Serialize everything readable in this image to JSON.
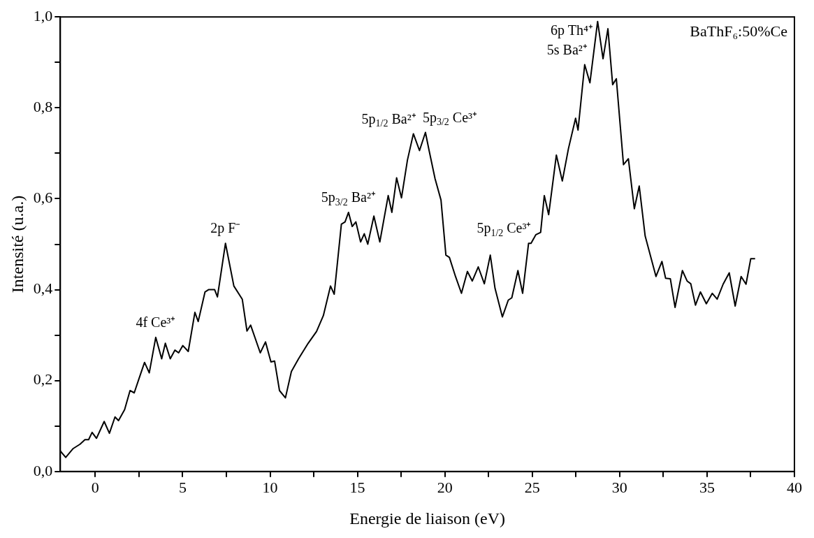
{
  "chart_data": {
    "type": "line",
    "xlabel": "Energie de liaison (eV)",
    "ylabel": "Intensité (u.a.)",
    "xlim": [
      -2,
      40
    ],
    "ylim": [
      0,
      1
    ],
    "xticks": [
      0,
      {
        "value": 2.5,
        "label": null
      },
      5,
      {
        "value": 7.5,
        "label": null
      },
      10,
      {
        "value": 12.5,
        "label": null
      },
      15,
      {
        "value": 17.5,
        "label": null
      },
      20,
      {
        "value": 22.5,
        "label": null
      },
      25,
      {
        "value": 27.5,
        "label": null
      },
      30,
      {
        "value": 32.5,
        "label": null
      },
      35,
      {
        "value": 37.5,
        "label": null
      },
      40
    ],
    "yticks": [
      {
        "value": 0,
        "label": "0,0"
      },
      {
        "value": 0.1,
        "label": null
      },
      {
        "value": 0.2,
        "label": "0,2"
      },
      {
        "value": 0.3,
        "label": null
      },
      {
        "value": 0.4,
        "label": "0,4"
      },
      {
        "value": 0.5,
        "label": null
      },
      {
        "value": 0.6,
        "label": "0,6"
      },
      {
        "value": 0.7,
        "label": null
      },
      {
        "value": 0.8,
        "label": "0,8"
      },
      {
        "value": 0.9,
        "label": null
      },
      {
        "value": 1,
        "label": "1,0"
      }
    ],
    "grid": false,
    "legend": false,
    "marker": "none",
    "line_style": "solid",
    "annotations": [
      {
        "text": "4f Ce³⁺",
        "x": 3.46,
        "y": 0.295
      },
      {
        "text": "2p F⁻",
        "x": 7.45,
        "y": 0.502
      },
      {
        "text": "5p$_{3/2}$ Ba²⁺",
        "x": 14.49,
        "y": 0.57
      },
      {
        "text": "5p$_{1/2}$ Ba²⁺",
        "x": 18.2,
        "y": 0.743
      },
      {
        "text": "5p$_{3/2}$ Ce³⁺",
        "x": 18.89,
        "y": 0.746
      },
      {
        "text": "5p$_{1/2}$ Ce³⁺",
        "x": 24.79,
        "y": 0.502
      },
      {
        "text": "6p Th⁴⁺",
        "x": 28.74,
        "y": 0.99
      },
      {
        "text": "5s Ba²⁺",
        "x": 28.0,
        "y": 0.895
      },
      "BaThF₆:50%Ce"
    ],
    "series": [
      {
        "color": "#000000",
        "x": [
          -2,
          -1.69,
          -1.28,
          -0.87,
          -0.59,
          -0.38,
          -0.18,
          0.07,
          0.51,
          0.81,
          1.13,
          1.33,
          1.68,
          1.99,
          2.23,
          2.5,
          2.82,
          3.09,
          3.46,
          3.8,
          4.01,
          4.29,
          4.56,
          4.77,
          5.01,
          5.32,
          5.7,
          5.89,
          6.28,
          6.48,
          6.83,
          6.99,
          7.45,
          7.93,
          8.41,
          8.68,
          8.89,
          9.44,
          9.74,
          10.05,
          10.26,
          10.54,
          10.88,
          11.22,
          11.63,
          12.18,
          12.66,
          13.05,
          13.46,
          13.67,
          14.08,
          14.29,
          14.49,
          14.7,
          14.91,
          15.18,
          15.39,
          15.59,
          15.94,
          16.28,
          16.76,
          16.97,
          17.24,
          17.52,
          17.86,
          18.2,
          18.55,
          18.89,
          19.1,
          19.44,
          19.78,
          20.06,
          20.26,
          20.61,
          20.95,
          21.29,
          21.57,
          21.91,
          22.26,
          22.6,
          22.87,
          23.29,
          23.63,
          23.83,
          24.18,
          24.45,
          24.79,
          24.93,
          25.21,
          25.48,
          25.69,
          25.94,
          26.38,
          26.72,
          27.07,
          27.48,
          27.62,
          28.0,
          28.3,
          28.74,
          29.05,
          29.33,
          29.6,
          29.81,
          30.22,
          30.5,
          30.84,
          31.12,
          31.46,
          32.08,
          32.42,
          32.63,
          32.9,
          33.17,
          33.59,
          33.86,
          34.07,
          34.34,
          34.62,
          34.96,
          35.3,
          35.58,
          35.92,
          36.27,
          36.61,
          36.95,
          37.23,
          37.5,
          37.75
        ],
        "values": [
          0.045,
          0.031,
          0.05,
          0.06,
          0.07,
          0.07,
          0.086,
          0.073,
          0.11,
          0.084,
          0.12,
          0.112,
          0.136,
          0.178,
          0.173,
          0.204,
          0.24,
          0.217,
          0.295,
          0.248,
          0.282,
          0.248,
          0.267,
          0.261,
          0.277,
          0.264,
          0.35,
          0.33,
          0.395,
          0.4,
          0.4,
          0.384,
          0.502,
          0.408,
          0.379,
          0.309,
          0.322,
          0.261,
          0.285,
          0.241,
          0.243,
          0.178,
          0.162,
          0.22,
          0.248,
          0.282,
          0.308,
          0.343,
          0.408,
          0.39,
          0.544,
          0.549,
          0.57,
          0.539,
          0.549,
          0.505,
          0.523,
          0.5,
          0.562,
          0.505,
          0.607,
          0.57,
          0.646,
          0.602,
          0.685,
          0.743,
          0.706,
          0.746,
          0.706,
          0.644,
          0.597,
          0.476,
          0.471,
          0.429,
          0.392,
          0.44,
          0.419,
          0.45,
          0.413,
          0.476,
          0.403,
          0.34,
          0.377,
          0.382,
          0.442,
          0.392,
          0.502,
          0.502,
          0.521,
          0.526,
          0.607,
          0.565,
          0.696,
          0.639,
          0.71,
          0.777,
          0.751,
          0.895,
          0.855,
          0.99,
          0.908,
          0.974,
          0.851,
          0.864,
          0.675,
          0.688,
          0.578,
          0.628,
          0.518,
          0.429,
          0.462,
          0.425,
          0.424,
          0.361,
          0.442,
          0.419,
          0.413,
          0.366,
          0.395,
          0.369,
          0.392,
          0.379,
          0.412,
          0.437,
          0.364,
          0.429,
          0.412,
          0.468,
          0.468
        ]
      }
    ]
  }
}
